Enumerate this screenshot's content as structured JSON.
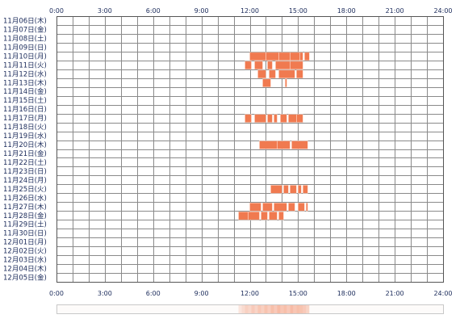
{
  "chart_data": {
    "type": "heatmap",
    "x_ticks": [
      "0:00",
      "3:00",
      "6:00",
      "9:00",
      "12:00",
      "15:00",
      "18:00",
      "21:00",
      "24:00"
    ],
    "xlim": [
      0,
      24
    ],
    "grid": true,
    "bar_color": "#f07a50",
    "bar_edge_color": "#ffd8c8",
    "rows": [
      {
        "label": "11月06日(木)",
        "intervals": []
      },
      {
        "label": "11月07日(金)",
        "intervals": []
      },
      {
        "label": "11月08日(土)",
        "intervals": []
      },
      {
        "label": "11月09日(日)",
        "intervals": []
      },
      {
        "label": "11月10日(月)",
        "intervals": [
          [
            12.0,
            13.0
          ],
          [
            13.0,
            13.8
          ],
          [
            13.8,
            14.5
          ],
          [
            14.5,
            15.1
          ],
          [
            15.1,
            15.3
          ],
          [
            15.4,
            15.7
          ]
        ]
      },
      {
        "label": "11月11日(火)",
        "intervals": [
          [
            11.7,
            12.1
          ],
          [
            12.3,
            12.8
          ],
          [
            13.1,
            13.4
          ],
          [
            13.6,
            14.5
          ],
          [
            14.5,
            15.3
          ]
        ]
      },
      {
        "label": "11月12日(水)",
        "intervals": [
          [
            12.5,
            13.0
          ],
          [
            13.2,
            13.6
          ],
          [
            13.8,
            14.8
          ],
          [
            14.9,
            15.3
          ]
        ]
      },
      {
        "label": "11月13日(木)",
        "intervals": [
          [
            12.8,
            13.3
          ],
          [
            14.2,
            14.3
          ]
        ]
      },
      {
        "label": "11月14日(金)",
        "intervals": []
      },
      {
        "label": "11月15日(土)",
        "intervals": []
      },
      {
        "label": "11月16日(日)",
        "intervals": []
      },
      {
        "label": "11月17日(月)",
        "intervals": [
          [
            11.7,
            12.1
          ],
          [
            12.3,
            13.0
          ],
          [
            13.1,
            13.4
          ],
          [
            13.5,
            13.7
          ],
          [
            13.9,
            14.3
          ],
          [
            14.4,
            14.9
          ],
          [
            14.9,
            15.3
          ]
        ]
      },
      {
        "label": "11月18日(火)",
        "intervals": []
      },
      {
        "label": "11月19日(水)",
        "intervals": []
      },
      {
        "label": "11月20日(木)",
        "intervals": [
          [
            12.6,
            13.7
          ],
          [
            13.7,
            14.5
          ],
          [
            14.6,
            15.6
          ]
        ]
      },
      {
        "label": "11月21日(金)",
        "intervals": []
      },
      {
        "label": "11月22日(土)",
        "intervals": []
      },
      {
        "label": "11月23日(日)",
        "intervals": []
      },
      {
        "label": "11月24日(月)",
        "intervals": []
      },
      {
        "label": "11月25日(火)",
        "intervals": [
          [
            13.3,
            14.0
          ],
          [
            14.1,
            14.4
          ],
          [
            14.5,
            14.9
          ],
          [
            15.0,
            15.2
          ],
          [
            15.3,
            15.6
          ]
        ]
      },
      {
        "label": "11月26日(水)",
        "intervals": []
      },
      {
        "label": "11月27日(木)",
        "intervals": [
          [
            12.0,
            12.7
          ],
          [
            12.8,
            13.4
          ],
          [
            13.5,
            14.3
          ],
          [
            14.4,
            14.8
          ],
          [
            15.0,
            15.4
          ],
          [
            15.5,
            15.6
          ]
        ]
      },
      {
        "label": "11月28日(金)",
        "intervals": [
          [
            11.3,
            11.9
          ],
          [
            11.9,
            12.6
          ],
          [
            12.7,
            13.1
          ],
          [
            13.2,
            13.7
          ],
          [
            13.8,
            14.1
          ]
        ]
      },
      {
        "label": "11月29日(土)",
        "intervals": []
      },
      {
        "label": "11月30日(日)",
        "intervals": []
      },
      {
        "label": "12月01日(月)",
        "intervals": []
      },
      {
        "label": "12月02日(火)",
        "intervals": []
      },
      {
        "label": "12月03日(水)",
        "intervals": []
      },
      {
        "label": "12月04日(木)",
        "intervals": []
      },
      {
        "label": "12月05日(金)",
        "intervals": []
      }
    ],
    "density_strip": {
      "cells": [
        [
          11.3,
          0.3
        ],
        [
          11.5,
          0.45
        ],
        [
          11.7,
          0.6
        ],
        [
          11.9,
          0.5
        ],
        [
          12.1,
          0.7
        ],
        [
          12.3,
          0.55
        ],
        [
          12.5,
          0.75
        ],
        [
          12.7,
          0.6
        ],
        [
          12.9,
          0.8
        ],
        [
          13.1,
          0.65
        ],
        [
          13.3,
          0.85
        ],
        [
          13.5,
          0.7
        ],
        [
          13.7,
          0.9
        ],
        [
          13.9,
          0.75
        ],
        [
          14.1,
          0.85
        ],
        [
          14.3,
          0.7
        ],
        [
          14.5,
          0.9
        ],
        [
          14.7,
          0.75
        ],
        [
          14.9,
          0.85
        ],
        [
          15.1,
          0.8
        ],
        [
          15.3,
          0.7
        ],
        [
          15.5,
          0.55
        ]
      ]
    }
  }
}
